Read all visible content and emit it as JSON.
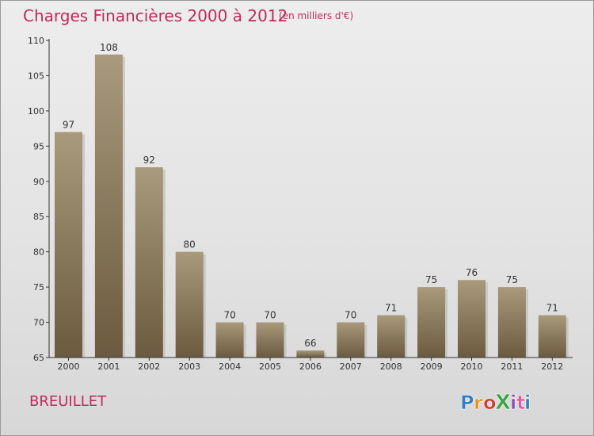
{
  "header": {
    "title": "Charges Financières 2000 à 2012",
    "subtitle": "(en milliers d'€)"
  },
  "footer": {
    "commune": "BREUILLET",
    "logo_text": "ProXiti",
    "logo_colors": [
      "#2d7fc1",
      "#e8941a",
      "#d83a2e",
      "#3aa64a",
      "#8a4fb5",
      "#e05b9b",
      "#2d7fc1"
    ]
  },
  "colors": {
    "accent": "#c1295e",
    "bar_top": "#a89a7b",
    "bar_bottom": "#6b5a3f",
    "axis": "#333333"
  },
  "chart_data": {
    "type": "bar",
    "categories": [
      "2000",
      "2001",
      "2002",
      "2003",
      "2004",
      "2005",
      "2006",
      "2007",
      "2008",
      "2009",
      "2010",
      "2011",
      "2012"
    ],
    "values": [
      97,
      108,
      92,
      80,
      70,
      70,
      66,
      70,
      71,
      75,
      76,
      75,
      71
    ],
    "value_labels": [
      "97",
      "108",
      "92",
      "80",
      "70",
      "70",
      "66",
      "70",
      "71",
      "75",
      "76",
      "75",
      "71"
    ],
    "yticks": [
      65,
      70,
      75,
      80,
      85,
      90,
      95,
      100,
      105,
      110
    ],
    "ytick_labels": [
      "65",
      "70",
      "75",
      "80",
      "85",
      "90",
      "95",
      "100",
      "105",
      "110"
    ],
    "ylim": [
      65,
      110
    ],
    "title": "Charges Financières 2000 à 2012",
    "xlabel": "",
    "ylabel": "",
    "grid": false,
    "legend": "none"
  }
}
